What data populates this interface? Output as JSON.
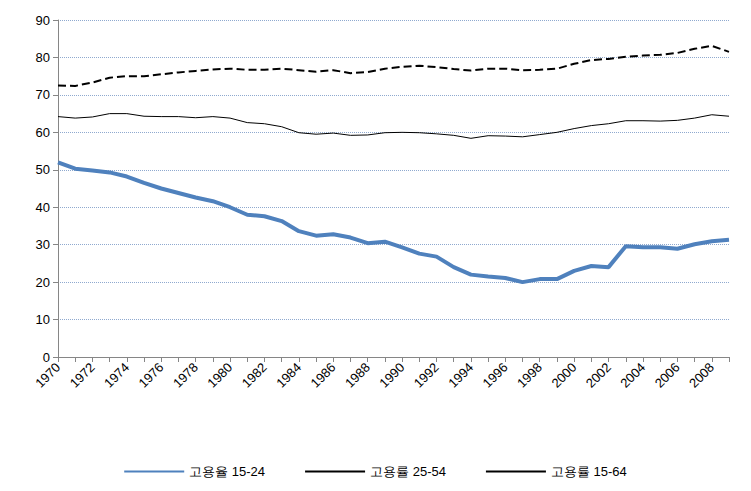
{
  "chart_data": {
    "type": "line",
    "categories": [
      "1970",
      null,
      "1972",
      null,
      "1974",
      null,
      "1976",
      null,
      "1978",
      null,
      "1980",
      null,
      "1982",
      null,
      "1984",
      null,
      "1986",
      null,
      "1988",
      null,
      "1990",
      null,
      "1992",
      null,
      "1994",
      null,
      "1996",
      null,
      "1998",
      null,
      "2000",
      null,
      "2002",
      null,
      "2004",
      null,
      "2006",
      null,
      "2008",
      null
    ],
    "series": [
      {
        "name": "고용율 15-24",
        "color": "#4f81bd",
        "line_style": "solid",
        "marker": "none",
        "values": [
          52,
          50.3,
          49.8,
          49.3,
          48.2,
          46.5,
          45,
          43.8,
          42.6,
          41.6,
          40,
          38,
          37.6,
          36.3,
          33.6,
          32.4,
          32.8,
          31.9,
          30.4,
          30.8,
          29.3,
          27.6,
          26.8,
          24,
          22,
          21.5,
          21.1,
          20,
          20.8,
          20.8,
          23,
          24.3,
          24,
          29.6,
          29.3,
          29.3,
          28.9,
          30.1,
          30.9,
          31.3
        ]
      },
      {
        "name": "고용률 25-54",
        "color": "#000000",
        "line_style": "dashed",
        "marker": "none",
        "values": [
          72.5,
          72.4,
          73.3,
          74.6,
          75,
          75,
          75.5,
          76,
          76.4,
          76.8,
          77,
          76.7,
          76.7,
          77,
          76.6,
          76.2,
          76.6,
          75.8,
          76.1,
          77,
          77.5,
          77.8,
          77.4,
          76.9,
          76.5,
          77,
          77,
          76.6,
          76.7,
          77,
          78.3,
          79.3,
          79.6,
          80.2,
          80.5,
          80.7,
          81.2,
          82.3,
          83.1,
          81.5
        ]
      },
      {
        "name": "고용률 15-64",
        "color": "#000000",
        "line_style": "solid",
        "marker": "none",
        "values": [
          64.2,
          63.8,
          64.1,
          65,
          65,
          64.3,
          64.2,
          64.2,
          63.9,
          64.2,
          63.8,
          62.6,
          62.3,
          61.5,
          59.9,
          59.5,
          59.8,
          59.2,
          59.3,
          59.9,
          60,
          59.9,
          59.6,
          59.2,
          58.4,
          59.1,
          59,
          58.8,
          59.4,
          60,
          61,
          61.8,
          62.3,
          63.1,
          63.1,
          63,
          63.2,
          63.8,
          64.7,
          64.3
        ]
      }
    ],
    "ylim": [
      0,
      90
    ],
    "yticks": [
      0,
      10,
      20,
      30,
      40,
      50,
      60,
      70,
      80,
      90
    ],
    "grid": true,
    "legend": "bottom"
  }
}
